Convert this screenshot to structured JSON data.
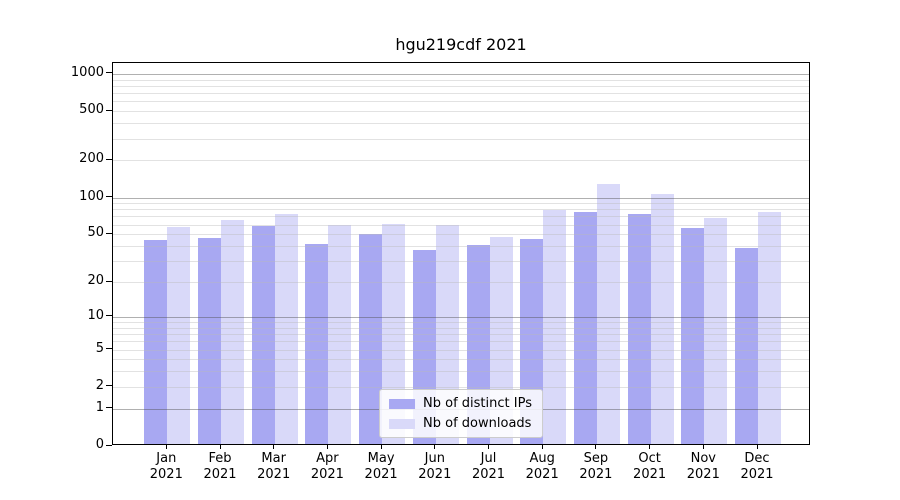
{
  "chart_data": {
    "type": "bar",
    "title": "hgu219cdf 2021",
    "y_scale": "log10(1+x)",
    "grid": true,
    "legend_position": "lower center",
    "categories": [
      "Jan",
      "Feb",
      "Mar",
      "Apr",
      "May",
      "Jun",
      "Jul",
      "Aug",
      "Sep",
      "Oct",
      "Nov",
      "Dec"
    ],
    "x_tick_year": "2021",
    "series": [
      {
        "name": "Nb of distinct IPs",
        "color": "#a8a8f2",
        "values": [
          43,
          45,
          56,
          40,
          48,
          36,
          39,
          44,
          74,
          70,
          54,
          37
        ]
      },
      {
        "name": "Nb of downloads",
        "color": "#d9d9f9",
        "values": [
          55,
          63,
          71,
          57,
          58,
          57,
          46,
          76,
          125,
          103,
          65,
          74
        ]
      }
    ],
    "y_ticks": [
      0,
      1,
      2,
      5,
      10,
      20,
      50,
      100,
      200,
      500,
      1000
    ],
    "ylim": [
      0,
      1000
    ],
    "xlabel": "",
    "ylabel": ""
  },
  "colors": {
    "bar_distinct_ips": "#a8a8f2",
    "bar_downloads": "#d9d9f9",
    "grid_major": "#b0b0b0",
    "grid_minor": "#e4e4e4",
    "axis": "#000000",
    "background": "#ffffff",
    "legend_border": "#cccccc"
  }
}
